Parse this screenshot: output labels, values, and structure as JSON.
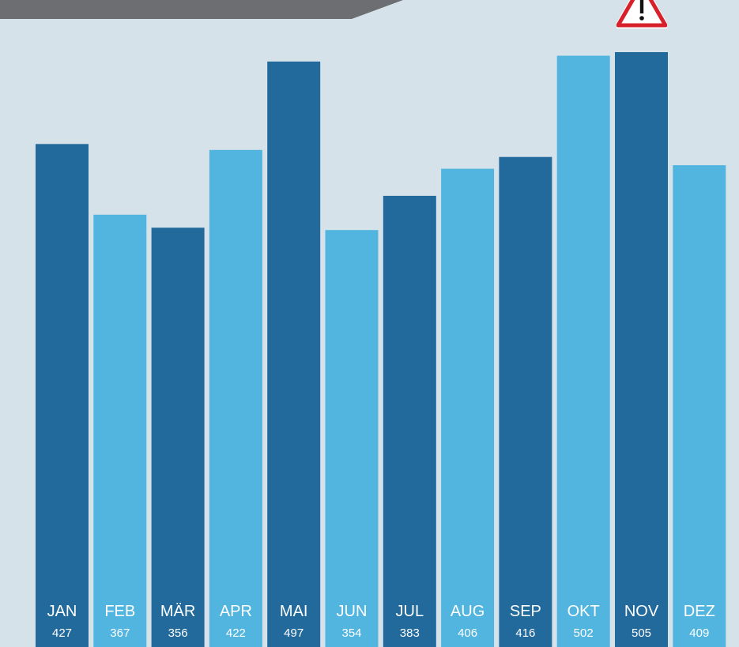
{
  "chart_data": {
    "type": "bar",
    "categories": [
      "JAN",
      "FEB",
      "MÄR",
      "APR",
      "MAI",
      "JUN",
      "JUL",
      "AUG",
      "SEP",
      "OKT",
      "NOV",
      "DEZ"
    ],
    "values": [
      427,
      367,
      356,
      422,
      497,
      354,
      383,
      406,
      416,
      502,
      505,
      409
    ],
    "value_labels": [
      "427",
      "367",
      "356",
      "422",
      "497",
      "354",
      "383",
      "406",
      "416",
      "502",
      "505",
      "409"
    ],
    "title": "",
    "xlabel": "",
    "ylabel": "",
    "ylim": [
      0,
      505
    ],
    "grid": false,
    "legend": "none",
    "colors": [
      "#226a9c",
      "#52b5df",
      "#226a9c",
      "#52b5df",
      "#226a9c",
      "#52b5df",
      "#226a9c",
      "#52b5df",
      "#226a9c",
      "#52b5df",
      "#226a9c",
      "#52b5df"
    ]
  },
  "style": {
    "background": "#d6e2ea",
    "banner_color": "#6d6e71",
    "warning_icon": "warning-triangle-icon"
  }
}
